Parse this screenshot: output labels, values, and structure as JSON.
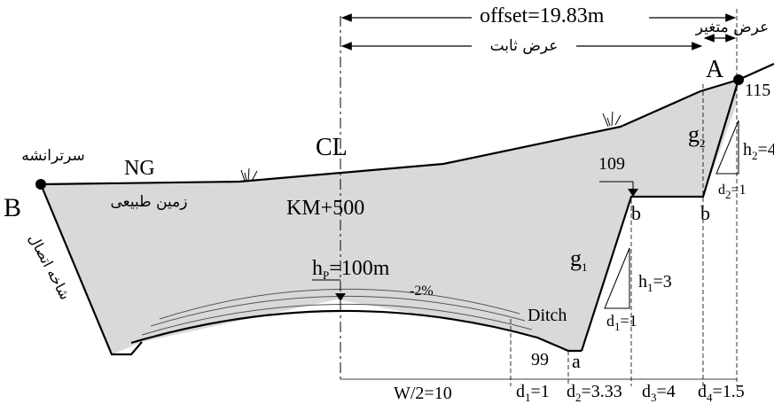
{
  "labels": {
    "offset": "offset=19.83m",
    "variable_width": "عرض متغير",
    "fixed_width": "عرض ثابت",
    "point_a": "A",
    "point_b": "B",
    "cl": "CL",
    "ng": "NG",
    "natural_ground": "زمین طبیعی",
    "cut_head": "سرترانشه",
    "km": "KM+500",
    "hp_h": "h",
    "hp_sub": "P",
    "hp_val": "=100m",
    "slope_pct": "-2%",
    "ditch": "Ditch",
    "connecting_branch": "شاخه اتصال",
    "elev_115": "115",
    "elev_109": "109",
    "elev_99": "99",
    "g1": "g",
    "g1_sub": "1",
    "g2": "g",
    "g2_sub": "2",
    "b1": "b",
    "b2": "b",
    "a_low": "a",
    "h1": "h",
    "h1_sub": "1",
    "h1_val": "=3",
    "d1_tri": "d",
    "d1_tri_sub": "1",
    "d1_tri_val": "=1",
    "h2": "h",
    "h2_sub": "2",
    "h2_val": "=4",
    "d2_tri": "d",
    "d2_tri_sub": "2",
    "d2_tri_val": "=1"
  },
  "bottom_dims": {
    "w2": "W/2=10",
    "d1": "d",
    "d1_sub": "1",
    "d1_val": "=1",
    "d2": "d",
    "d2_sub": "2",
    "d2_val": "=3.33",
    "d3": "d",
    "d3_sub": "3",
    "d3_val": "=4",
    "d4": "d",
    "d4_sub": "4",
    "d4_val": "=1.5"
  },
  "colors": {
    "fill": "#d9d9d9",
    "line": "#000000"
  }
}
